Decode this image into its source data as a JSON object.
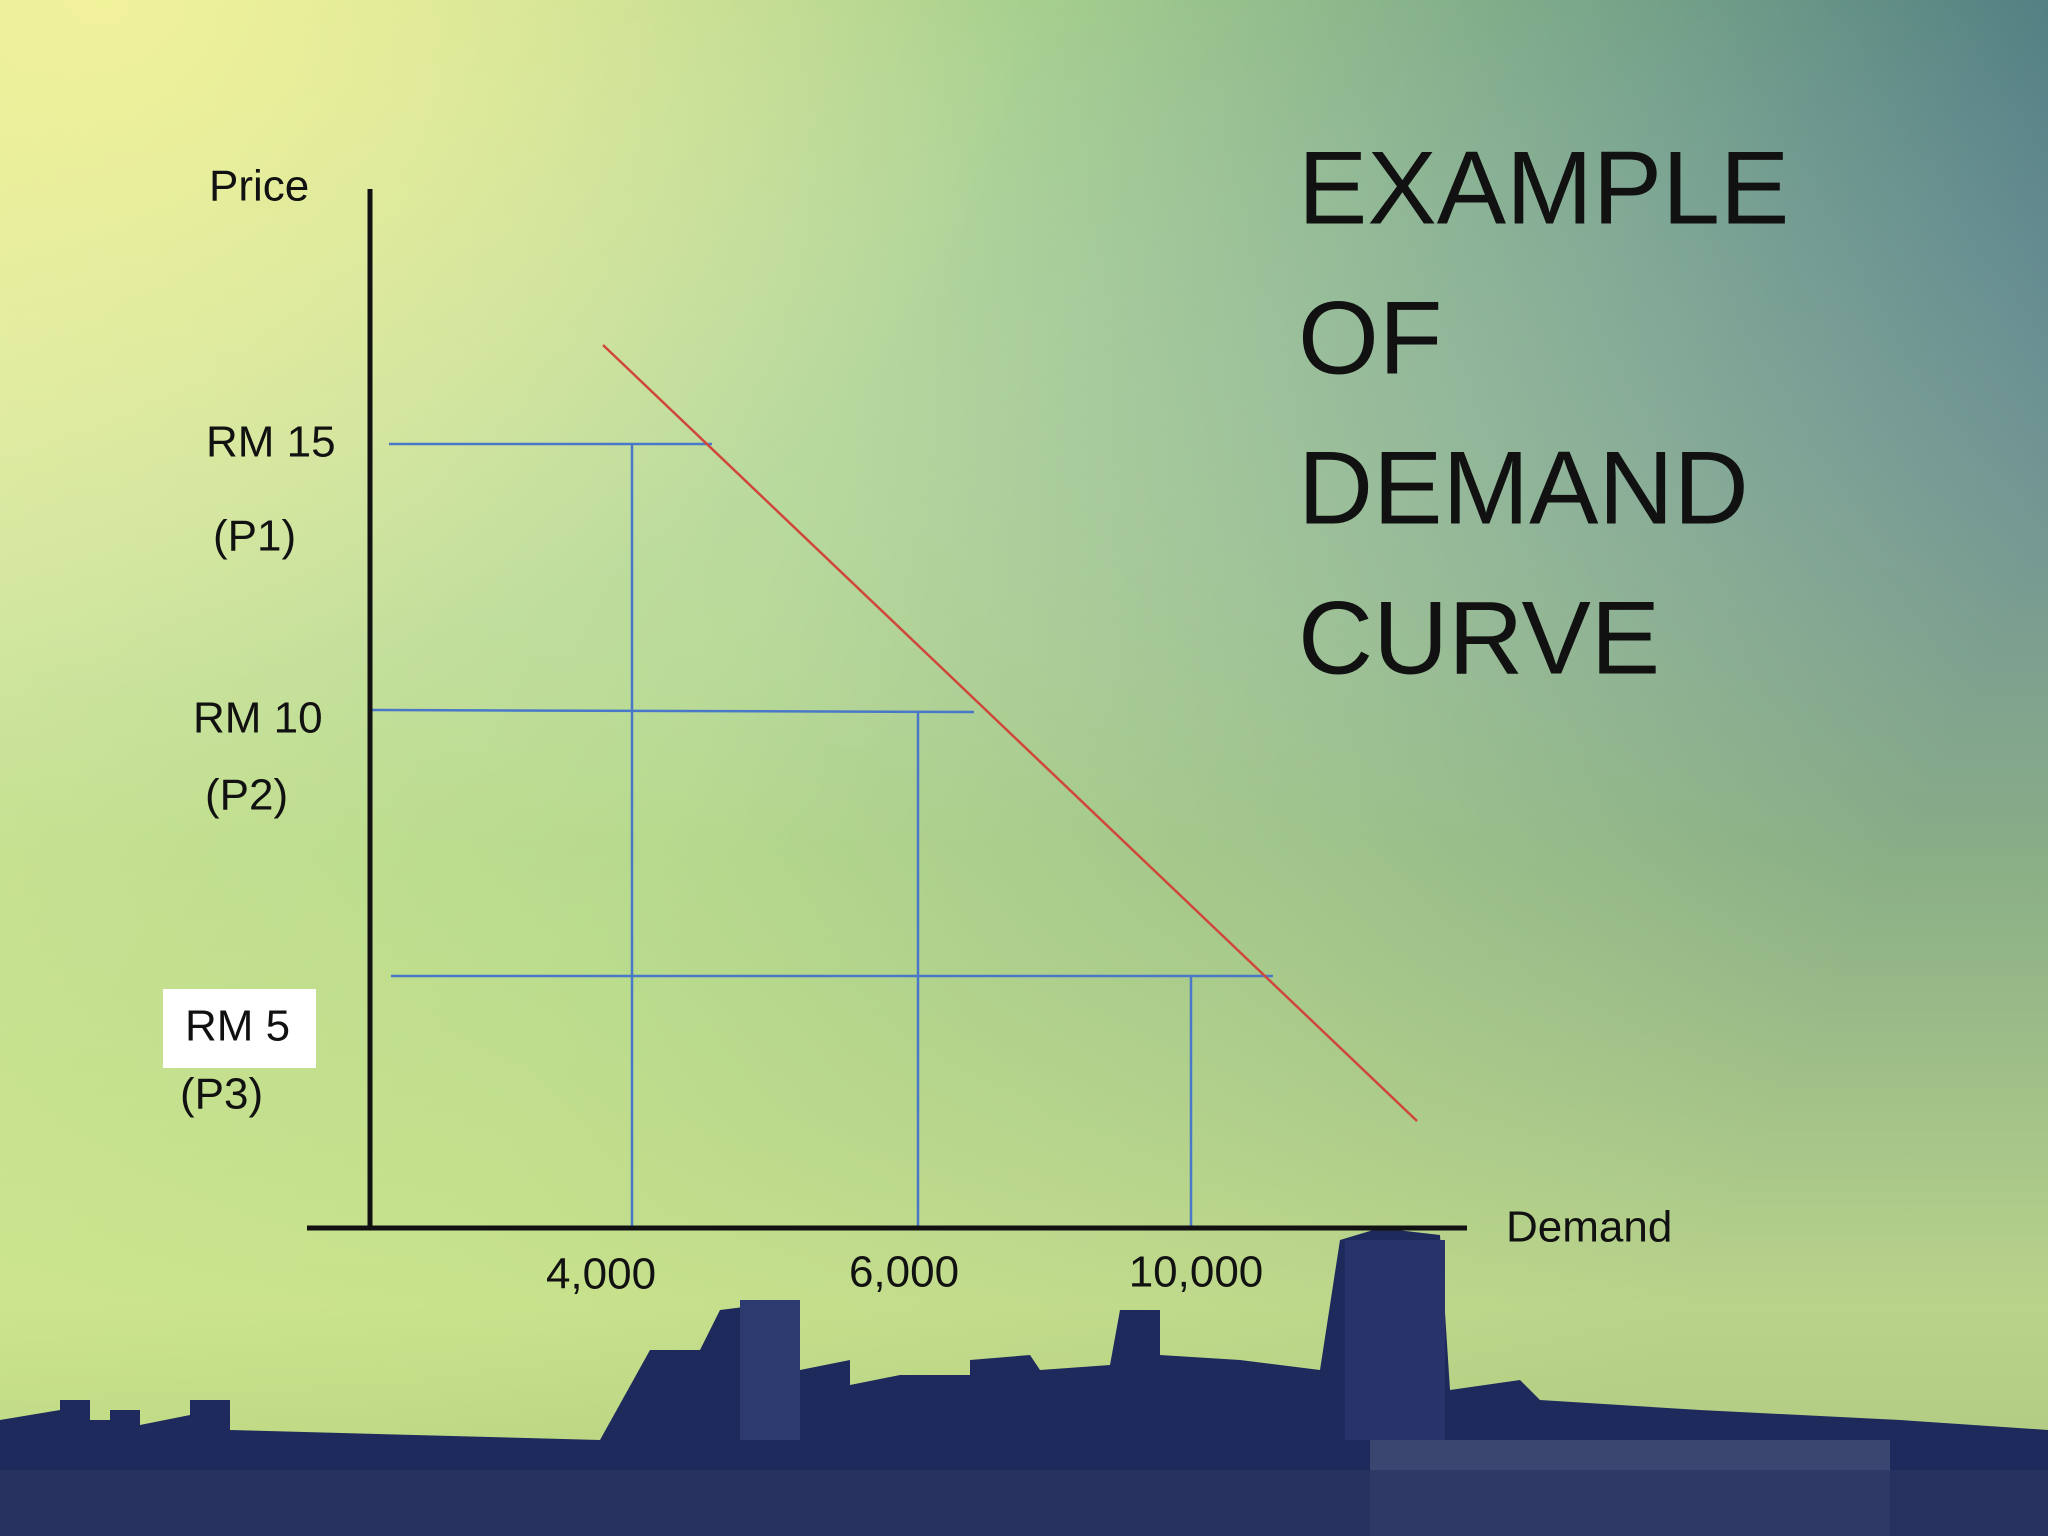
{
  "title": [
    "EXAMPLE",
    "OF",
    "DEMAND",
    "CURVE"
  ],
  "axes": {
    "y_label": "Price",
    "x_label": "Demand"
  },
  "price_labels": [
    {
      "price": "RM 15",
      "tag": "(P1)"
    },
    {
      "price": "RM 10",
      "tag": "(P2)"
    },
    {
      "price": "RM 5",
      "tag": "(P3)"
    }
  ],
  "demand_labels": [
    "4,000",
    "6,000",
    "10,000"
  ]
}
